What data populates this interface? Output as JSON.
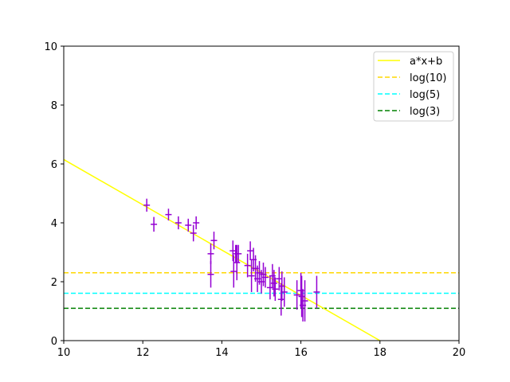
{
  "chart_data": {
    "type": "scatter",
    "xlim": [
      10,
      20
    ],
    "ylim": [
      0,
      10
    ],
    "x_ticks": [
      10,
      12,
      14,
      16,
      18,
      20
    ],
    "y_ticks": [
      0,
      2,
      4,
      6,
      8,
      10
    ],
    "grid": false,
    "legend_position": "top-right",
    "legend": [
      {
        "label": "a*x+b",
        "color": "#ffff00",
        "style": "solid"
      },
      {
        "label": "log(10)",
        "color": "#ffd700",
        "style": "dashed"
      },
      {
        "label": "log(5)",
        "color": "#00ffff",
        "style": "dashed"
      },
      {
        "label": "log(3)",
        "color": "#008000",
        "style": "dashed"
      }
    ],
    "fit_line": {
      "x": [
        10,
        18
      ],
      "y": [
        6.15,
        0
      ]
    },
    "hlines": [
      {
        "y": 2.3026,
        "color": "#ffd700"
      },
      {
        "y": 1.6094,
        "color": "#00ffff"
      },
      {
        "y": 1.0986,
        "color": "#008000"
      }
    ],
    "error_color": "#9400d3",
    "points": [
      {
        "x": 12.1,
        "y": 4.6,
        "err": 0.22
      },
      {
        "x": 12.28,
        "y": 3.95,
        "err": 0.25
      },
      {
        "x": 12.65,
        "y": 4.28,
        "err": 0.2
      },
      {
        "x": 12.9,
        "y": 4.0,
        "err": 0.22
      },
      {
        "x": 13.15,
        "y": 3.92,
        "err": 0.22
      },
      {
        "x": 13.28,
        "y": 3.65,
        "err": 0.28
      },
      {
        "x": 13.35,
        "y": 4.0,
        "err": 0.22
      },
      {
        "x": 13.72,
        "y": 2.95,
        "err": 0.35
      },
      {
        "x": 13.72,
        "y": 2.25,
        "err": 0.45
      },
      {
        "x": 13.8,
        "y": 3.4,
        "err": 0.3
      },
      {
        "x": 14.28,
        "y": 3.05,
        "err": 0.35
      },
      {
        "x": 14.3,
        "y": 2.35,
        "err": 0.55
      },
      {
        "x": 14.35,
        "y": 2.95,
        "err": 0.3
      },
      {
        "x": 14.38,
        "y": 2.65,
        "err": 0.6
      },
      {
        "x": 14.42,
        "y": 2.95,
        "err": 0.3
      },
      {
        "x": 14.65,
        "y": 2.55,
        "err": 0.4
      },
      {
        "x": 14.72,
        "y": 3.05,
        "err": 0.32
      },
      {
        "x": 14.75,
        "y": 2.2,
        "err": 0.55
      },
      {
        "x": 14.8,
        "y": 2.75,
        "err": 0.4
      },
      {
        "x": 14.85,
        "y": 2.45,
        "err": 0.45
      },
      {
        "x": 14.9,
        "y": 2.1,
        "err": 0.45
      },
      {
        "x": 14.95,
        "y": 2.3,
        "err": 0.4
      },
      {
        "x": 15.0,
        "y": 2.0,
        "err": 0.4
      },
      {
        "x": 15.05,
        "y": 2.25,
        "err": 0.4
      },
      {
        "x": 15.1,
        "y": 2.15,
        "err": 0.35
      },
      {
        "x": 15.22,
        "y": 1.8,
        "err": 0.4
      },
      {
        "x": 15.28,
        "y": 2.2,
        "err": 0.4
      },
      {
        "x": 15.32,
        "y": 1.95,
        "err": 0.45
      },
      {
        "x": 15.35,
        "y": 1.75,
        "err": 0.4
      },
      {
        "x": 15.45,
        "y": 2.1,
        "err": 0.4
      },
      {
        "x": 15.5,
        "y": 1.4,
        "err": 0.55
      },
      {
        "x": 15.52,
        "y": 1.85,
        "err": 0.5
      },
      {
        "x": 15.58,
        "y": 1.65,
        "err": 0.5
      },
      {
        "x": 15.9,
        "y": 1.55,
        "err": 0.5
      },
      {
        "x": 16.0,
        "y": 1.7,
        "err": 0.6
      },
      {
        "x": 16.02,
        "y": 1.5,
        "err": 0.7
      },
      {
        "x": 16.05,
        "y": 1.2,
        "err": 0.55
      },
      {
        "x": 16.1,
        "y": 1.35,
        "err": 0.7
      },
      {
        "x": 16.4,
        "y": 1.65,
        "err": 0.55
      }
    ]
  }
}
